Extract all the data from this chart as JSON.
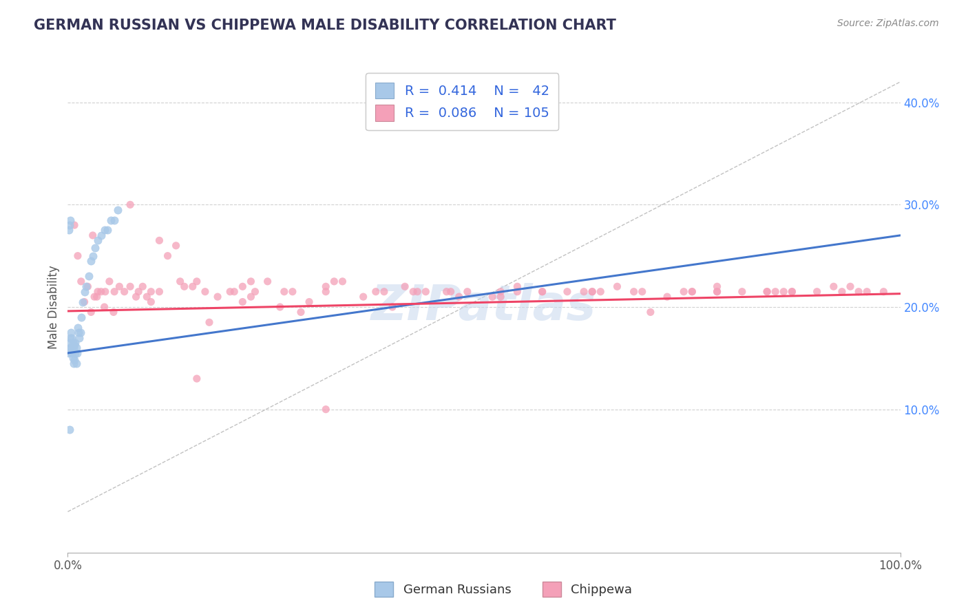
{
  "title": "GERMAN RUSSIAN VS CHIPPEWA MALE DISABILITY CORRELATION CHART",
  "source": "Source: ZipAtlas.com",
  "ylabel": "Male Disability",
  "xlim": [
    0.0,
    1.0
  ],
  "ylim": [
    -0.04,
    0.44
  ],
  "ytick_positions": [
    0.1,
    0.2,
    0.3,
    0.4
  ],
  "ytick_labels": [
    "10.0%",
    "20.0%",
    "30.0%",
    "40.0%"
  ],
  "german_russian_color": "#a8c8e8",
  "chippewa_color": "#f4a0b8",
  "background_color": "#ffffff",
  "grid_color": "#cccccc",
  "german_russian_line_color": "#4477cc",
  "chippewa_line_color": "#ee4466",
  "diag_line_color": "#bbbbbb",
  "watermark_color": "#c8d8ee",
  "legend_text_color": "#3366dd",
  "title_color": "#333355",
  "source_color": "#888888",
  "gr_x": [
    0.001,
    0.001,
    0.002,
    0.002,
    0.003,
    0.003,
    0.004,
    0.004,
    0.005,
    0.005,
    0.006,
    0.006,
    0.007,
    0.007,
    0.008,
    0.008,
    0.009,
    0.009,
    0.01,
    0.01,
    0.011,
    0.012,
    0.013,
    0.014,
    0.015,
    0.016,
    0.018,
    0.02,
    0.022,
    0.025,
    0.028,
    0.03,
    0.033,
    0.036,
    0.04,
    0.044,
    0.048,
    0.052,
    0.056,
    0.06,
    0.002,
    0.003
  ],
  "gr_y": [
    0.155,
    0.275,
    0.165,
    0.28,
    0.16,
    0.17,
    0.16,
    0.175,
    0.155,
    0.17,
    0.15,
    0.165,
    0.145,
    0.16,
    0.148,
    0.163,
    0.155,
    0.165,
    0.145,
    0.16,
    0.155,
    0.18,
    0.175,
    0.17,
    0.175,
    0.19,
    0.205,
    0.215,
    0.22,
    0.23,
    0.245,
    0.25,
    0.258,
    0.265,
    0.27,
    0.275,
    0.275,
    0.285,
    0.285,
    0.295,
    0.08,
    0.285
  ],
  "ch_x": [
    0.008,
    0.012,
    0.016,
    0.02,
    0.024,
    0.028,
    0.032,
    0.036,
    0.04,
    0.044,
    0.05,
    0.056,
    0.062,
    0.068,
    0.075,
    0.082,
    0.09,
    0.1,
    0.11,
    0.12,
    0.135,
    0.15,
    0.165,
    0.18,
    0.195,
    0.21,
    0.225,
    0.24,
    0.255,
    0.27,
    0.29,
    0.31,
    0.33,
    0.355,
    0.38,
    0.405,
    0.43,
    0.455,
    0.48,
    0.51,
    0.54,
    0.57,
    0.6,
    0.63,
    0.66,
    0.69,
    0.72,
    0.75,
    0.78,
    0.81,
    0.84,
    0.87,
    0.9,
    0.93,
    0.96,
    0.98,
    0.03,
    0.055,
    0.095,
    0.13,
    0.17,
    0.21,
    0.26,
    0.32,
    0.39,
    0.46,
    0.54,
    0.62,
    0.7,
    0.78,
    0.85,
    0.92,
    0.075,
    0.11,
    0.155,
    0.22,
    0.31,
    0.42,
    0.52,
    0.63,
    0.74,
    0.84,
    0.94,
    0.035,
    0.085,
    0.14,
    0.2,
    0.28,
    0.37,
    0.47,
    0.57,
    0.68,
    0.78,
    0.87,
    0.95,
    0.045,
    0.1,
    0.155,
    0.22,
    0.31,
    0.415,
    0.52,
    0.64,
    0.75,
    0.86
  ],
  "ch_y": [
    0.28,
    0.25,
    0.225,
    0.205,
    0.22,
    0.195,
    0.21,
    0.215,
    0.215,
    0.2,
    0.225,
    0.215,
    0.22,
    0.215,
    0.22,
    0.21,
    0.22,
    0.205,
    0.215,
    0.25,
    0.225,
    0.22,
    0.215,
    0.21,
    0.215,
    0.205,
    0.215,
    0.225,
    0.2,
    0.215,
    0.205,
    0.22,
    0.225,
    0.21,
    0.215,
    0.22,
    0.215,
    0.215,
    0.215,
    0.21,
    0.215,
    0.215,
    0.215,
    0.215,
    0.22,
    0.215,
    0.21,
    0.215,
    0.215,
    0.215,
    0.215,
    0.215,
    0.215,
    0.215,
    0.215,
    0.215,
    0.27,
    0.195,
    0.21,
    0.26,
    0.185,
    0.22,
    0.215,
    0.225,
    0.2,
    0.215,
    0.22,
    0.215,
    0.195,
    0.22,
    0.215,
    0.22,
    0.3,
    0.265,
    0.225,
    0.225,
    0.215,
    0.215,
    0.215,
    0.215,
    0.215,
    0.215,
    0.22,
    0.21,
    0.215,
    0.22,
    0.215,
    0.195,
    0.215,
    0.21,
    0.215,
    0.215,
    0.215,
    0.215,
    0.215,
    0.215,
    0.215,
    0.13,
    0.21,
    0.1,
    0.215,
    0.21,
    0.215,
    0.215,
    0.215
  ]
}
